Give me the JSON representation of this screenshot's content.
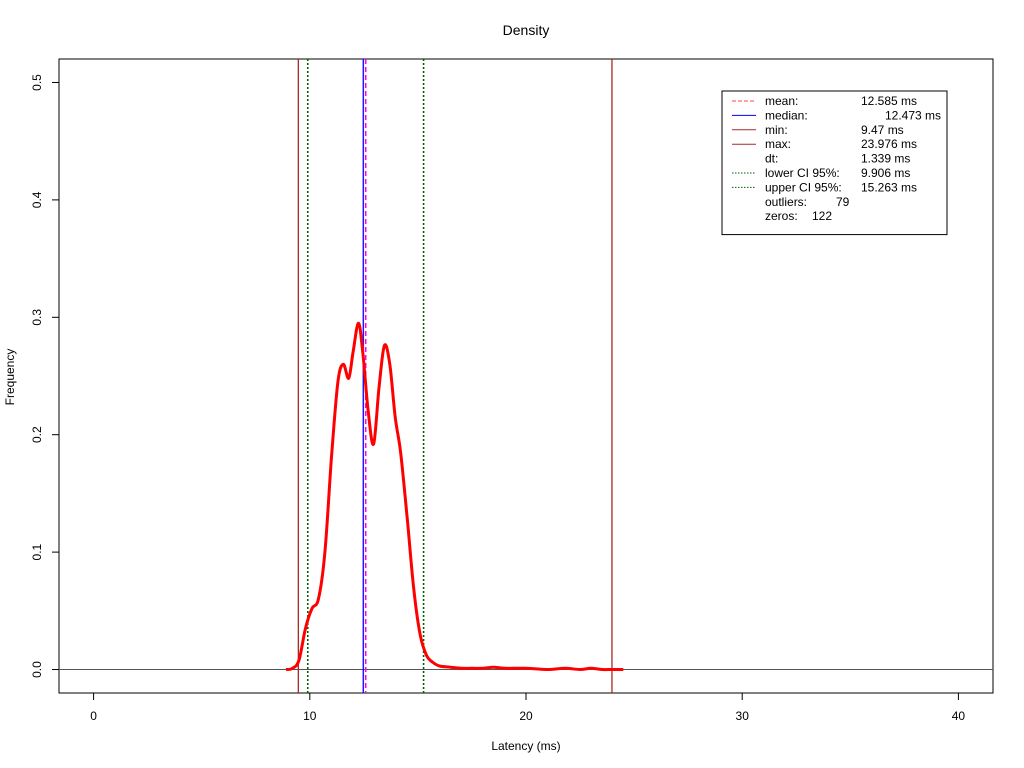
{
  "chart_data": {
    "type": "line",
    "title": "Density",
    "xlabel": "Latency (ms)",
    "ylabel": "Frequency",
    "xlim": [
      -1.6,
      41.6
    ],
    "ylim": [
      -0.02,
      0.52
    ],
    "xticks": [
      0,
      10,
      20,
      30,
      40
    ],
    "yticks": [
      0.0,
      0.1,
      0.2,
      0.3,
      0.4,
      0.5
    ],
    "xtick_labels": [
      "0",
      "10",
      "20",
      "30",
      "40"
    ],
    "ytick_labels": [
      "0.0",
      "0.1",
      "0.2",
      "0.3",
      "0.4",
      "0.5"
    ],
    "grid": false,
    "legend_position": "top-right",
    "series": [
      {
        "color": "#ff0000",
        "x": [
          8.9,
          9.2,
          9.5,
          9.8,
          10.1,
          10.4,
          10.7,
          11.0,
          11.3,
          11.55,
          11.8,
          12.0,
          12.25,
          12.45,
          12.7,
          12.95,
          13.2,
          13.45,
          13.7,
          13.95,
          14.2,
          14.5,
          14.8,
          15.1,
          15.4,
          15.7,
          16.0,
          16.5,
          17.0,
          17.5,
          18.0,
          18.5,
          19.0,
          20.0,
          21.0,
          21.8,
          22.5,
          23.0,
          23.5,
          24.0,
          24.5
        ],
        "y": [
          0.0,
          0.001,
          0.008,
          0.035,
          0.052,
          0.06,
          0.1,
          0.18,
          0.245,
          0.26,
          0.248,
          0.27,
          0.295,
          0.27,
          0.22,
          0.192,
          0.24,
          0.276,
          0.26,
          0.215,
          0.185,
          0.13,
          0.07,
          0.03,
          0.012,
          0.006,
          0.003,
          0.002,
          0.001,
          0.001,
          0.001,
          0.002,
          0.001,
          0.001,
          0.0,
          0.001,
          0.0,
          0.001,
          0.0,
          0.0,
          0.0
        ]
      }
    ],
    "vlines": [
      {
        "name": "min",
        "x": 9.47,
        "color": "#a52a2a",
        "dash": "solid"
      },
      {
        "name": "lower_ci",
        "x": 9.906,
        "color": "#006400",
        "dash": "dotted"
      },
      {
        "name": "median",
        "x": 12.473,
        "color": "#0000ff",
        "dash": "solid"
      },
      {
        "name": "mean",
        "x": 12.585,
        "color": "#ff00ff",
        "dash": "dashed"
      },
      {
        "name": "upper_ci",
        "x": 15.263,
        "color": "#006400",
        "dash": "dotted"
      },
      {
        "name": "max",
        "x": 23.976,
        "color": "#a52a2a",
        "dash": "solid"
      }
    ],
    "hline": {
      "y": 0,
      "color": "#555555"
    },
    "legend": {
      "rows": [
        {
          "key": "mean",
          "label": "mean:",
          "value": "12.585 ms",
          "color": "#ff4444",
          "dash": "dashed",
          "indent": false
        },
        {
          "key": "median",
          "label": "median:",
          "value": "12.473 ms",
          "color": "#0000ff",
          "dash": "solid",
          "indent": true
        },
        {
          "key": "min",
          "label": "min:",
          "value": "9.47 ms",
          "color": "#a52a2a",
          "dash": "solid",
          "indent": false
        },
        {
          "key": "max",
          "label": "max:",
          "value": "23.976 ms",
          "color": "#a52a2a",
          "dash": "solid",
          "indent": false
        },
        {
          "key": "dt",
          "label": "dt:",
          "value": "1.339 ms",
          "color": "",
          "dash": "none",
          "indent": false
        },
        {
          "key": "lower_ci",
          "label": "lower CI 95%:",
          "value": "9.906 ms",
          "color": "#006400",
          "dash": "dotted",
          "indent": false
        },
        {
          "key": "upper_ci",
          "label": "upper CI 95%:",
          "value": "15.263 ms",
          "color": "#006400",
          "dash": "dotted",
          "indent": false
        },
        {
          "key": "outliers",
          "label": "outliers:",
          "value": "79",
          "color": "",
          "dash": "none",
          "indent": false
        },
        {
          "key": "zeros",
          "label": "zeros:",
          "value": "122",
          "color": "",
          "dash": "none",
          "indent": false
        }
      ]
    }
  }
}
